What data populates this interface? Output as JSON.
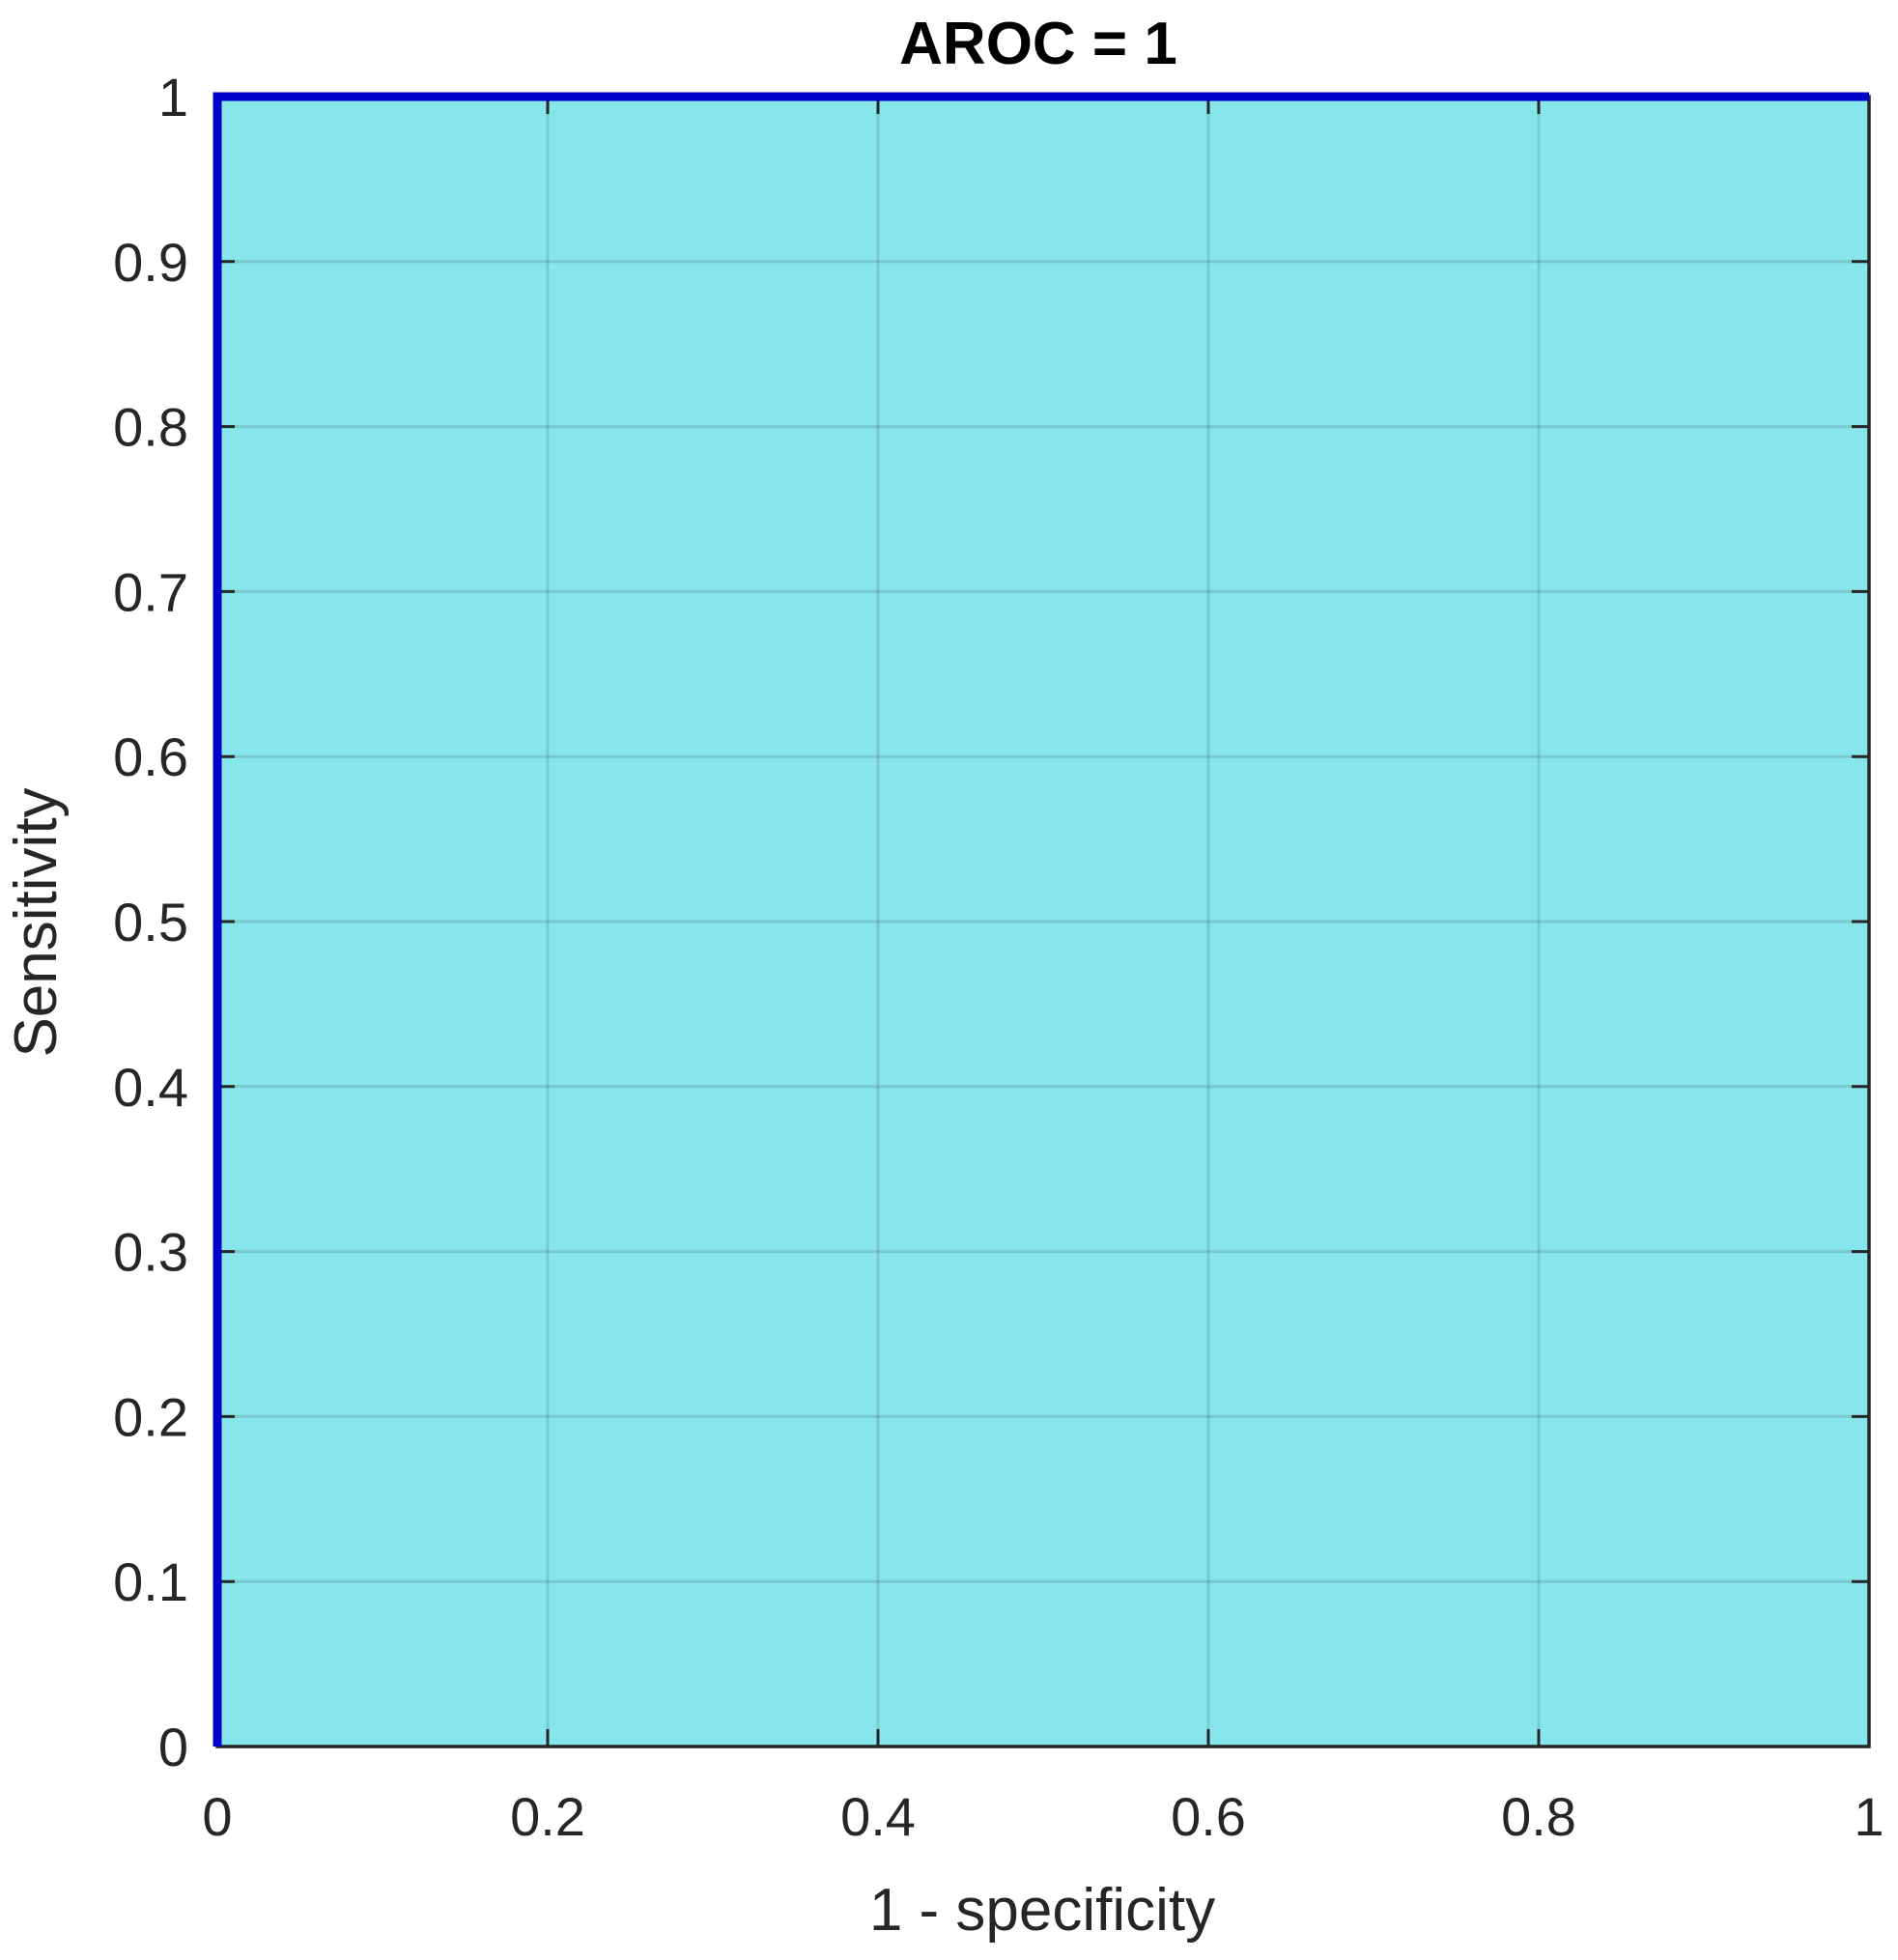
{
  "chart_data": {
    "type": "area",
    "title": "AROC = 1",
    "xlabel": "1 - specificity",
    "ylabel": "Sensitivity",
    "xlim": [
      0,
      1
    ],
    "ylim": [
      0,
      1
    ],
    "xticks": [
      "0",
      "0.2",
      "0.4",
      "0.6",
      "0.8",
      "1"
    ],
    "xtick_values": [
      0,
      0.2,
      0.4,
      0.6,
      0.8,
      1
    ],
    "yticks": [
      "0",
      "0.1",
      "0.2",
      "0.3",
      "0.4",
      "0.5",
      "0.6",
      "0.7",
      "0.8",
      "0.9",
      "1"
    ],
    "ytick_values": [
      0,
      0.1,
      0.2,
      0.3,
      0.4,
      0.5,
      0.6,
      0.7,
      0.8,
      0.9,
      1
    ],
    "grid": true,
    "series": [
      {
        "x": [
          0,
          0,
          1
        ],
        "y": [
          0,
          1,
          1
        ],
        "line_color": "#0000cc",
        "fill_color": "#86e6eb"
      }
    ]
  }
}
